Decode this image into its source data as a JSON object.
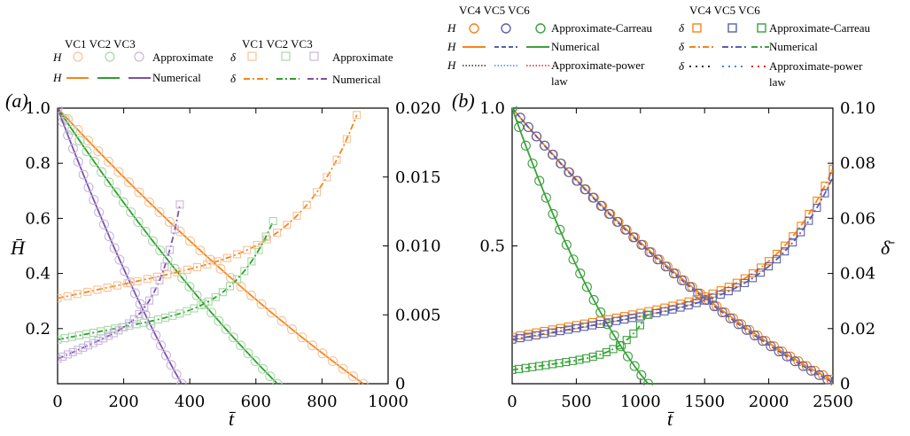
{
  "colors": {
    "vc1": "#F58518",
    "vc2": "#2CA02C",
    "vc3": "#7B52AB",
    "vc1_light": "#F7C39A",
    "vc2_light": "#A6D9A6",
    "vc3_light": "#C9B6DF",
    "vc4": "#F58518",
    "vc5": "#5B5FAD",
    "vc6": "#3AA23A",
    "power_h": "#2B2B2B",
    "power_blue": "#3C8FD0",
    "power_red": "#D62728"
  },
  "panel_a": {
    "label": "(a)",
    "legend": {
      "header_h": "VC1 VC2 VC3",
      "header_d": "VC1 VC2 VC3",
      "row1_sym": "H",
      "row1_text": "Approximate",
      "row2_sym": "H",
      "row2_text": "Numerical",
      "row3_sym": "δ",
      "row3_text": "Approximate",
      "row4_sym": "δ",
      "row4_text": "Numerical"
    },
    "xlabel": "t̄",
    "ylabel_left": "H̄",
    "ylabel_right": "",
    "x_ticks": [
      "0",
      "200",
      "400",
      "600",
      "800",
      "1000"
    ],
    "y_left_ticks": [
      "0.2",
      "0.4",
      "0.6",
      "0.8",
      "1.0"
    ],
    "y_right_ticks": [
      "0",
      "0.005",
      "0.010",
      "0.015",
      "0.020"
    ]
  },
  "panel_b": {
    "label": "(b)",
    "legend": {
      "header_h": "VC4  VC5  VC6",
      "header_d": "VC4   VC5  VC6",
      "h_sym": "H",
      "d_sym": "δ",
      "row1_text": "Approximate-Carreau",
      "row2_text": "Numerical",
      "row3_text_a": "Approximate-power",
      "row3_text_b": "law",
      "d_row1_text": "Approximate-Carreau",
      "d_row2_text": "Numerical",
      "d_row3_text_a": "Approximate-power",
      "d_row3_text_b": "law"
    },
    "xlabel": "t̄",
    "ylabel_left": "",
    "ylabel_right": "δ̄",
    "x_ticks": [
      "0",
      "500",
      "1000",
      "1500",
      "2000",
      "2500"
    ],
    "y_left_ticks": [
      "0.5",
      "1.0"
    ],
    "y_right_ticks": [
      "0",
      "0.02",
      "0.04",
      "0.06",
      "0.08",
      "0.10"
    ]
  },
  "chart_data": [
    {
      "type": "line",
      "panel": "a",
      "xlim": [
        0,
        1000
      ],
      "ylim_left": [
        0,
        1.0
      ],
      "ylim_right": [
        0,
        0.02
      ],
      "series": [
        {
          "name": "VC1",
          "quantity": "H",
          "axis": "left",
          "t_end": 925,
          "exponent": 1.45
        },
        {
          "name": "VC2",
          "quantity": "H",
          "axis": "left",
          "t_end": 665,
          "exponent": 1.45
        },
        {
          "name": "VC3",
          "quantity": "H",
          "axis": "left",
          "t_end": 375,
          "exponent": 1.35
        },
        {
          "name": "VC1",
          "quantity": "δ",
          "axis": "right",
          "t_end": 905,
          "start": 0.0062,
          "end": 0.0195
        },
        {
          "name": "VC2",
          "quantity": "δ",
          "axis": "right",
          "t_end": 652,
          "start": 0.0032,
          "end": 0.0118
        },
        {
          "name": "VC3",
          "quantity": "δ",
          "axis": "right",
          "t_end": 370,
          "start": 0.0018,
          "end": 0.013
        }
      ]
    },
    {
      "type": "line",
      "panel": "b",
      "xlim": [
        0,
        2500
      ],
      "ylim_left": [
        0,
        1.0
      ],
      "ylim_right": [
        0,
        0.1
      ],
      "series": [
        {
          "name": "VC4",
          "quantity": "H",
          "axis": "left",
          "t_end": 2550,
          "exponent": 2.0
        },
        {
          "name": "VC5",
          "quantity": "H",
          "axis": "left",
          "t_end": 2520,
          "exponent": 2.0
        },
        {
          "name": "VC6",
          "quantity": "H",
          "axis": "left",
          "t_end": 1060,
          "exponent": 2.0
        },
        {
          "name": "VC4",
          "quantity": "δ",
          "axis": "right",
          "t_end": 2500,
          "start": 0.017,
          "end": 0.078
        },
        {
          "name": "VC5",
          "quantity": "δ",
          "axis": "right",
          "t_end": 2500,
          "start": 0.016,
          "end": 0.075
        },
        {
          "name": "VC6",
          "quantity": "δ",
          "axis": "right",
          "t_end": 1050,
          "start": 0.005,
          "end": 0.025
        }
      ]
    }
  ]
}
